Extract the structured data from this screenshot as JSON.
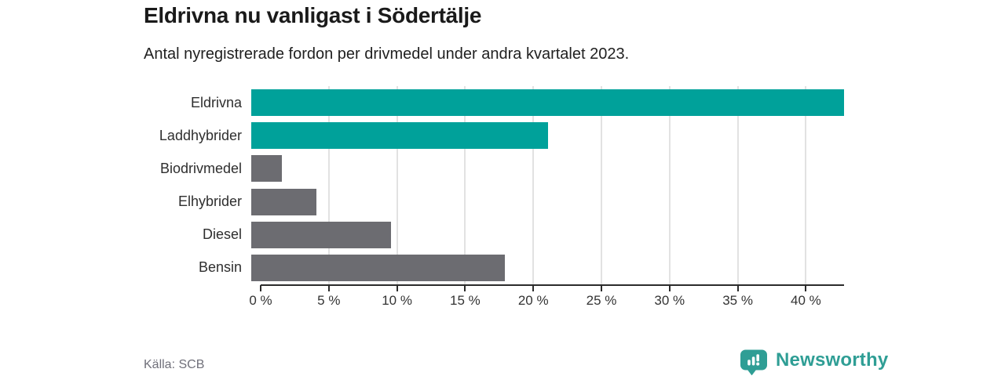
{
  "header": {
    "title": "Eldrivna nu vanligast i Södertälje",
    "subtitle": "Antal nyregistrerade fordon per drivmedel under andra kvartalet 2023."
  },
  "chart_data": {
    "type": "bar",
    "orientation": "horizontal",
    "title": "Eldrivna nu vanligast i Södertälje",
    "subtitle": "Antal nyregistrerade fordon per drivmedel under andra kvartalet 2023.",
    "categories": [
      "Eldrivna",
      "Laddhybrider",
      "Biodrivmedel",
      "Elhybrider",
      "Diesel",
      "Bensin"
    ],
    "values": [
      42.8,
      21.4,
      2.2,
      4.7,
      10.1,
      18.3
    ],
    "unit": "%",
    "xlabel": "",
    "ylabel": "",
    "xlim": [
      0,
      42.8
    ],
    "x_ticks": [
      0,
      5,
      10,
      15,
      20,
      25,
      30,
      35,
      40
    ],
    "x_tick_labels": [
      "0 %",
      "5 %",
      "10 %",
      "15 %",
      "20 %",
      "25 %",
      "30 %",
      "35 %",
      "40 %"
    ],
    "grid": true,
    "legend": false,
    "highlight_color": "#00a19a",
    "default_color": "#6c6c71",
    "bar_colors": [
      "#00a19a",
      "#00a19a",
      "#6c6c71",
      "#6c6c71",
      "#6c6c71",
      "#6c6c71"
    ]
  },
  "footer": {
    "source": "Källa: SCB",
    "brand": "Newsworthy",
    "brand_color": "#2f9e95"
  }
}
